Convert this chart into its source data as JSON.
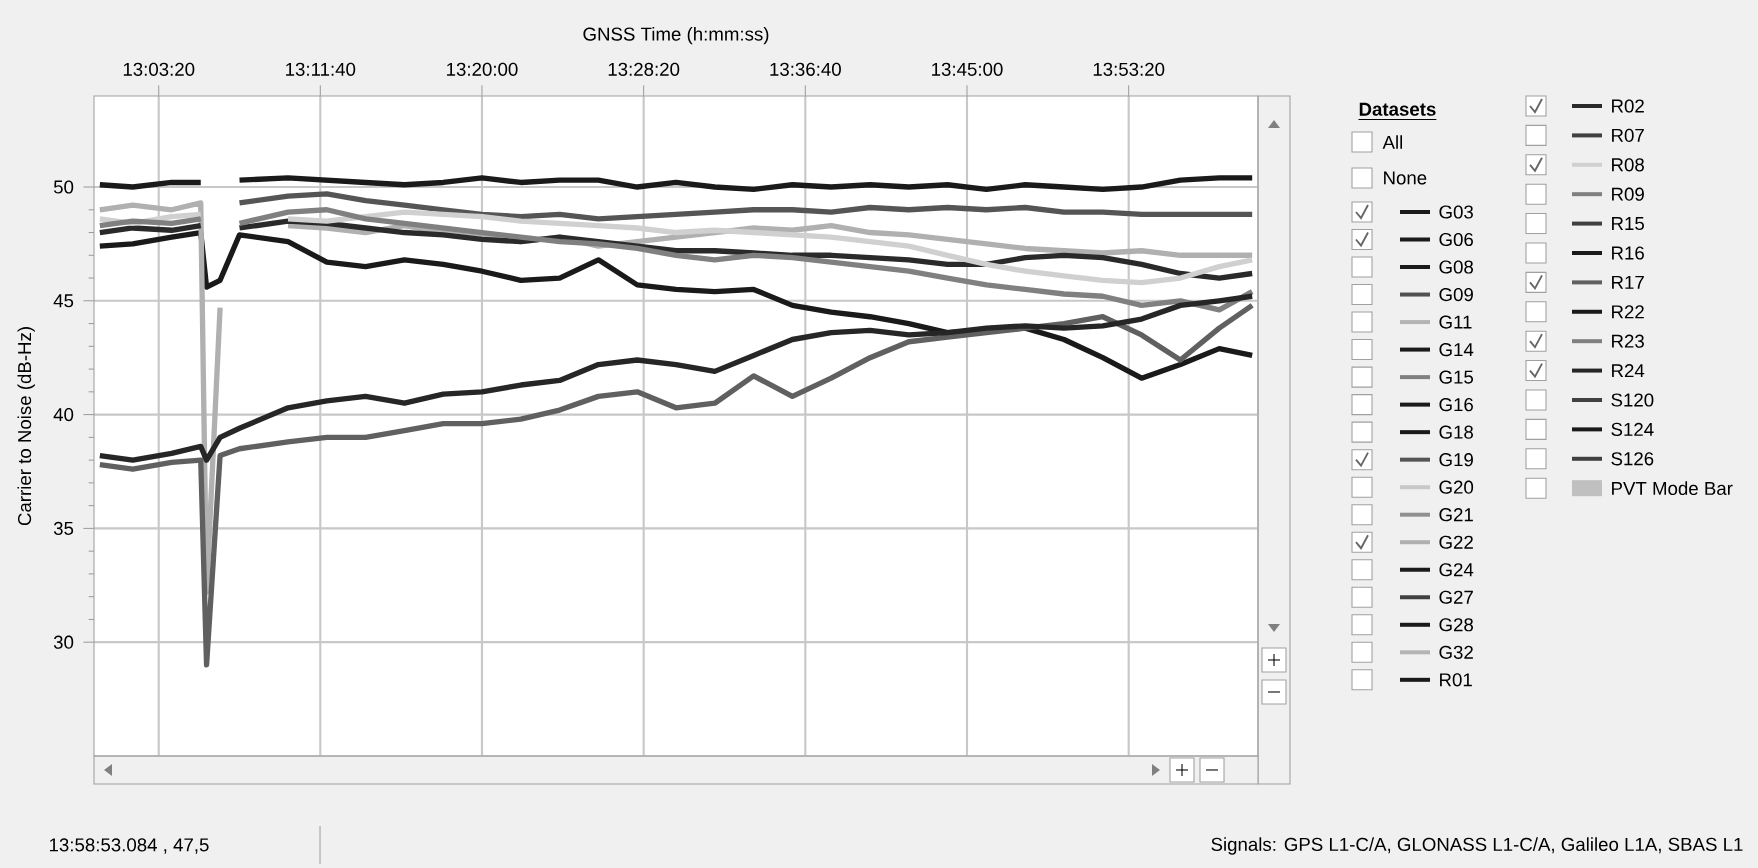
{
  "chart_data": {
    "type": "line",
    "xlabel": "GNSS Time (h:mm:ss)",
    "ylabel": "Carrier to Noise (dB-Hz)",
    "legend_title": "Datasets",
    "legend": "right",
    "grid": true,
    "xlim": [
      13.0,
      14.0
    ],
    "xticks": [
      {
        "value": 13.0556,
        "label": "13:03:20"
      },
      {
        "value": 13.1944,
        "label": "13:11:40"
      },
      {
        "value": 13.3333,
        "label": "13:20:00"
      },
      {
        "value": 13.4722,
        "label": "13:28:20"
      },
      {
        "value": 13.6111,
        "label": "13:36:40"
      },
      {
        "value": 13.75,
        "label": "13:45:00"
      },
      {
        "value": 13.8889,
        "label": "13:53:20"
      }
    ],
    "ylim": [
      25,
      54
    ],
    "yticks": [
      30,
      35,
      40,
      45,
      50
    ],
    "annotations": [
      "All",
      "None",
      "13:58:53.084 , 47,5",
      "Signals: GPS L1-C/A, GLONASS L1-C/A, Galileo L1A, SBAS L1"
    ],
    "x": [
      13.005,
      13.0333,
      13.0667,
      13.0917,
      13.0967,
      13.1083,
      13.125,
      13.1667,
      13.2,
      13.2333,
      13.2667,
      13.3,
      13.3333,
      13.3667,
      13.4,
      13.4333,
      13.4667,
      13.5,
      13.5333,
      13.5667,
      13.6,
      13.6333,
      13.6667,
      13.7,
      13.7333,
      13.7667,
      13.8,
      13.8333,
      13.8667,
      13.9,
      13.9333,
      13.9667,
      13.995
    ],
    "series": [
      {
        "name": "G03",
        "color": "#1a1a1a",
        "values": [
          50.1,
          50.0,
          50.2,
          50.2,
          null,
          null,
          50.3,
          50.4,
          50.3,
          50.2,
          50.1,
          50.2,
          50.4,
          50.2,
          50.3,
          50.3,
          50.0,
          50.2,
          50.0,
          49.9,
          50.1,
          50.0,
          50.1,
          50.0,
          50.1,
          49.9,
          50.1,
          50.0,
          49.9,
          50.0,
          50.3,
          50.4,
          50.4
        ]
      },
      {
        "name": "G06",
        "color": "#1a1a1a",
        "values": [
          47.4,
          47.5,
          47.8,
          48.0,
          45.6,
          45.9,
          47.9,
          47.6,
          46.7,
          46.5,
          46.8,
          46.6,
          46.3,
          45.9,
          46.0,
          46.8,
          45.7,
          45.5,
          45.4,
          45.5,
          44.8,
          44.5,
          44.3,
          44.0,
          43.6,
          43.7,
          43.8,
          43.3,
          42.5,
          41.6,
          42.2,
          42.9,
          42.6
        ]
      },
      {
        "name": "G08",
        "color": "#1a1a1a",
        "values": [
          null,
          null,
          null,
          null,
          null,
          null,
          null,
          null,
          null,
          null,
          null,
          null,
          null,
          null,
          null,
          null,
          null,
          null,
          null,
          null,
          null,
          null,
          null,
          null,
          null,
          null,
          null,
          null,
          null,
          null,
          null,
          null,
          null
        ]
      },
      {
        "name": "G09",
        "color": "#505050",
        "values": [
          null,
          null,
          null,
          null,
          null,
          null,
          null,
          null,
          null,
          null,
          null,
          null,
          null,
          null,
          null,
          null,
          null,
          null,
          null,
          null,
          null,
          null,
          null,
          null,
          null,
          null,
          null,
          null,
          null,
          null,
          null,
          null,
          null
        ]
      },
      {
        "name": "G11",
        "color": "#b4b4b4",
        "values": [
          null,
          null,
          null,
          null,
          null,
          null,
          null,
          null,
          null,
          null,
          null,
          null,
          null,
          null,
          null,
          null,
          null,
          null,
          null,
          null,
          null,
          null,
          null,
          null,
          null,
          null,
          null,
          null,
          null,
          null,
          null,
          null,
          null
        ]
      },
      {
        "name": "G14",
        "color": "#1a1a1a",
        "values": [
          null,
          null,
          null,
          null,
          null,
          null,
          null,
          null,
          null,
          null,
          null,
          null,
          null,
          null,
          null,
          null,
          null,
          null,
          null,
          null,
          null,
          null,
          null,
          null,
          null,
          null,
          null,
          null,
          null,
          null,
          null,
          null,
          null
        ]
      },
      {
        "name": "G15",
        "color": "#808080",
        "values": [
          null,
          null,
          null,
          null,
          null,
          null,
          null,
          null,
          null,
          null,
          null,
          null,
          null,
          null,
          null,
          null,
          null,
          null,
          null,
          null,
          null,
          null,
          null,
          null,
          null,
          null,
          null,
          null,
          null,
          null,
          null,
          null,
          null
        ]
      },
      {
        "name": "G16",
        "color": "#1a1a1a",
        "values": [
          null,
          null,
          null,
          null,
          null,
          null,
          null,
          null,
          null,
          null,
          null,
          null,
          null,
          null,
          null,
          null,
          null,
          null,
          null,
          null,
          null,
          null,
          null,
          null,
          null,
          null,
          null,
          null,
          null,
          null,
          null,
          null,
          null
        ]
      },
      {
        "name": "G18",
        "color": "#1a1a1a",
        "values": [
          null,
          null,
          null,
          null,
          null,
          null,
          null,
          null,
          null,
          null,
          null,
          null,
          null,
          null,
          null,
          null,
          null,
          null,
          null,
          null,
          null,
          null,
          null,
          null,
          null,
          null,
          null,
          null,
          null,
          null,
          null,
          null,
          null
        ]
      },
      {
        "name": "G19",
        "color": "#555555",
        "values": [
          null,
          null,
          null,
          null,
          null,
          null,
          49.3,
          49.6,
          49.7,
          49.4,
          49.2,
          49.0,
          48.8,
          48.7,
          48.8,
          48.6,
          48.7,
          48.8,
          48.9,
          49.0,
          49.0,
          48.9,
          49.1,
          49.0,
          49.1,
          49.0,
          49.1,
          48.9,
          48.9,
          48.8,
          48.8,
          48.8,
          48.8
        ]
      },
      {
        "name": "G20",
        "color": "#c8c8c8",
        "values": [
          null,
          null,
          null,
          null,
          null,
          null,
          null,
          null,
          null,
          null,
          null,
          null,
          null,
          null,
          null,
          null,
          null,
          null,
          null,
          null,
          null,
          null,
          null,
          null,
          null,
          null,
          null,
          null,
          null,
          null,
          null,
          null,
          null
        ]
      },
      {
        "name": "G21",
        "color": "#909090",
        "values": [
          null,
          null,
          null,
          null,
          null,
          null,
          null,
          null,
          null,
          null,
          null,
          null,
          null,
          null,
          null,
          null,
          null,
          null,
          null,
          null,
          null,
          null,
          null,
          null,
          null,
          null,
          null,
          null,
          null,
          null,
          null,
          null,
          null
        ]
      },
      {
        "name": "G22",
        "color": "#b0b0b0",
        "values": [
          49.0,
          49.2,
          49.0,
          49.3,
          32.2,
          44.7,
          null,
          48.3,
          48.2,
          48.0,
          48.3,
          48.0,
          47.9,
          47.6,
          47.8,
          47.4,
          47.6,
          47.8,
          48.0,
          48.2,
          48.1,
          48.3,
          48.0,
          47.9,
          47.7,
          47.5,
          47.3,
          47.2,
          47.1,
          47.2,
          47.0,
          47.0,
          47.0
        ]
      },
      {
        "name": "G24",
        "color": "#1a1a1a",
        "values": [
          null,
          null,
          null,
          null,
          null,
          null,
          null,
          null,
          null,
          null,
          null,
          null,
          null,
          null,
          null,
          null,
          null,
          null,
          null,
          null,
          null,
          null,
          null,
          null,
          null,
          null,
          null,
          null,
          null,
          null,
          null,
          null,
          null
        ]
      },
      {
        "name": "G27",
        "color": "#404040",
        "values": [
          null,
          null,
          null,
          null,
          null,
          null,
          null,
          null,
          null,
          null,
          null,
          null,
          null,
          null,
          null,
          null,
          null,
          null,
          null,
          null,
          null,
          null,
          null,
          null,
          null,
          null,
          null,
          null,
          null,
          null,
          null,
          null,
          null
        ]
      },
      {
        "name": "G28",
        "color": "#1a1a1a",
        "values": [
          null,
          null,
          null,
          null,
          null,
          null,
          null,
          null,
          null,
          null,
          null,
          null,
          null,
          null,
          null,
          null,
          null,
          null,
          null,
          null,
          null,
          null,
          null,
          null,
          null,
          null,
          null,
          null,
          null,
          null,
          null,
          null,
          null
        ]
      },
      {
        "name": "G32",
        "color": "#b4b4b4",
        "values": [
          null,
          null,
          null,
          null,
          null,
          null,
          null,
          null,
          null,
          null,
          null,
          null,
          null,
          null,
          null,
          null,
          null,
          null,
          null,
          null,
          null,
          null,
          null,
          null,
          null,
          null,
          null,
          null,
          null,
          null,
          null,
          null,
          null
        ]
      },
      {
        "name": "R01",
        "color": "#1a1a1a",
        "values": [
          null,
          null,
          null,
          null,
          null,
          null,
          null,
          null,
          null,
          null,
          null,
          null,
          null,
          null,
          null,
          null,
          null,
          null,
          null,
          null,
          null,
          null,
          null,
          null,
          null,
          null,
          null,
          null,
          null,
          null,
          null,
          null,
          null
        ]
      },
      {
        "name": "R02",
        "color": "#2a2a2a",
        "values": [
          48.0,
          48.2,
          48.1,
          48.3,
          null,
          null,
          48.2,
          48.5,
          48.4,
          48.2,
          48.0,
          47.9,
          47.7,
          47.6,
          47.8,
          47.6,
          47.4,
          47.2,
          47.2,
          47.1,
          47.0,
          47.0,
          46.9,
          46.8,
          46.6,
          46.6,
          46.9,
          47.0,
          46.9,
          46.6,
          46.2,
          46.0,
          46.2
        ]
      },
      {
        "name": "R07",
        "color": "#404040",
        "values": [
          null,
          null,
          null,
          null,
          null,
          null,
          null,
          null,
          null,
          null,
          null,
          null,
          null,
          null,
          null,
          null,
          null,
          null,
          null,
          null,
          null,
          null,
          null,
          null,
          null,
          null,
          null,
          null,
          null,
          null,
          null,
          null,
          null
        ]
      },
      {
        "name": "R08",
        "color": "#d0d0d0",
        "values": [
          48.6,
          48.4,
          48.7,
          48.8,
          null,
          null,
          null,
          48.6,
          48.5,
          48.7,
          48.9,
          48.8,
          48.7,
          48.5,
          48.4,
          48.3,
          48.2,
          48.0,
          48.1,
          48.0,
          47.9,
          47.8,
          47.6,
          47.4,
          47.0,
          46.6,
          46.3,
          46.1,
          45.9,
          45.8,
          46.0,
          46.5,
          46.8
        ]
      },
      {
        "name": "R09",
        "color": "#808080",
        "values": [
          null,
          null,
          null,
          null,
          null,
          null,
          null,
          null,
          null,
          null,
          null,
          null,
          null,
          null,
          null,
          null,
          null,
          null,
          null,
          null,
          null,
          null,
          null,
          null,
          null,
          null,
          null,
          null,
          null,
          null,
          null,
          null,
          null
        ]
      },
      {
        "name": "R15",
        "color": "#404040",
        "values": [
          null,
          null,
          null,
          null,
          null,
          null,
          null,
          null,
          null,
          null,
          null,
          null,
          null,
          null,
          null,
          null,
          null,
          null,
          null,
          null,
          null,
          null,
          null,
          null,
          null,
          null,
          null,
          null,
          null,
          null,
          null,
          null,
          null
        ]
      },
      {
        "name": "R16",
        "color": "#1a1a1a",
        "values": [
          null,
          null,
          null,
          null,
          null,
          null,
          null,
          null,
          null,
          null,
          null,
          null,
          null,
          null,
          null,
          null,
          null,
          null,
          null,
          null,
          null,
          null,
          null,
          null,
          null,
          null,
          null,
          null,
          null,
          null,
          null,
          null,
          null
        ]
      },
      {
        "name": "R17",
        "color": "#606060",
        "values": [
          37.8,
          37.6,
          37.9,
          38.0,
          29.0,
          38.2,
          38.5,
          38.8,
          39.0,
          39.0,
          39.3,
          39.6,
          39.6,
          39.8,
          40.2,
          40.8,
          41.0,
          40.3,
          40.5,
          41.7,
          40.8,
          41.6,
          42.5,
          43.2,
          43.4,
          43.6,
          43.8,
          44.0,
          44.3,
          43.5,
          42.4,
          43.8,
          44.8
        ]
      },
      {
        "name": "R22",
        "color": "#1a1a1a",
        "values": [
          null,
          null,
          null,
          null,
          null,
          null,
          null,
          null,
          null,
          null,
          null,
          null,
          null,
          null,
          null,
          null,
          null,
          null,
          null,
          null,
          null,
          null,
          null,
          null,
          null,
          null,
          null,
          null,
          null,
          null,
          null,
          null,
          null
        ]
      },
      {
        "name": "R23",
        "color": "#808080",
        "values": [
          48.3,
          48.5,
          48.4,
          48.6,
          null,
          null,
          48.4,
          48.9,
          49.0,
          48.6,
          48.4,
          48.2,
          48.0,
          47.8,
          47.6,
          47.5,
          47.3,
          47.0,
          46.8,
          47.0,
          46.9,
          46.7,
          46.5,
          46.3,
          46.0,
          45.7,
          45.5,
          45.3,
          45.2,
          44.8,
          45.0,
          44.6,
          45.4
        ]
      },
      {
        "name": "R24",
        "color": "#262626",
        "values": [
          38.2,
          38.0,
          38.3,
          38.6,
          38.0,
          39.0,
          39.4,
          40.3,
          40.6,
          40.8,
          40.5,
          40.9,
          41.0,
          41.3,
          41.5,
          42.2,
          42.4,
          42.2,
          41.9,
          42.6,
          43.3,
          43.6,
          43.7,
          43.5,
          43.6,
          43.8,
          43.9,
          43.8,
          43.9,
          44.2,
          44.8,
          45.0,
          45.2
        ]
      },
      {
        "name": "S120",
        "color": "#404040",
        "values": [
          null,
          null,
          null,
          null,
          null,
          null,
          null,
          null,
          null,
          null,
          null,
          null,
          null,
          null,
          null,
          null,
          null,
          null,
          null,
          null,
          null,
          null,
          null,
          null,
          null,
          null,
          null,
          null,
          null,
          null,
          null,
          null,
          null
        ]
      },
      {
        "name": "S124",
        "color": "#1a1a1a",
        "values": [
          null,
          null,
          null,
          null,
          null,
          null,
          null,
          null,
          null,
          null,
          null,
          null,
          null,
          null,
          null,
          null,
          null,
          null,
          null,
          null,
          null,
          null,
          null,
          null,
          null,
          null,
          null,
          null,
          null,
          null,
          null,
          null,
          null
        ]
      },
      {
        "name": "S126",
        "color": "#404040",
        "values": [
          null,
          null,
          null,
          null,
          null,
          null,
          null,
          null,
          null,
          null,
          null,
          null,
          null,
          null,
          null,
          null,
          null,
          null,
          null,
          null,
          null,
          null,
          null,
          null,
          null,
          null,
          null,
          null,
          null,
          null,
          null,
          null,
          null
        ]
      },
      {
        "name": "PVT Mode Bar",
        "type": "bar",
        "color": "#c0c0c0",
        "values": [
          null,
          null,
          null,
          null,
          null,
          null,
          null,
          null,
          null,
          null,
          null,
          null,
          null,
          null,
          null,
          null,
          null,
          null,
          null,
          null,
          null,
          null,
          null,
          null,
          null,
          null,
          null,
          null,
          null,
          null,
          null,
          null,
          null
        ]
      }
    ]
  }
}
